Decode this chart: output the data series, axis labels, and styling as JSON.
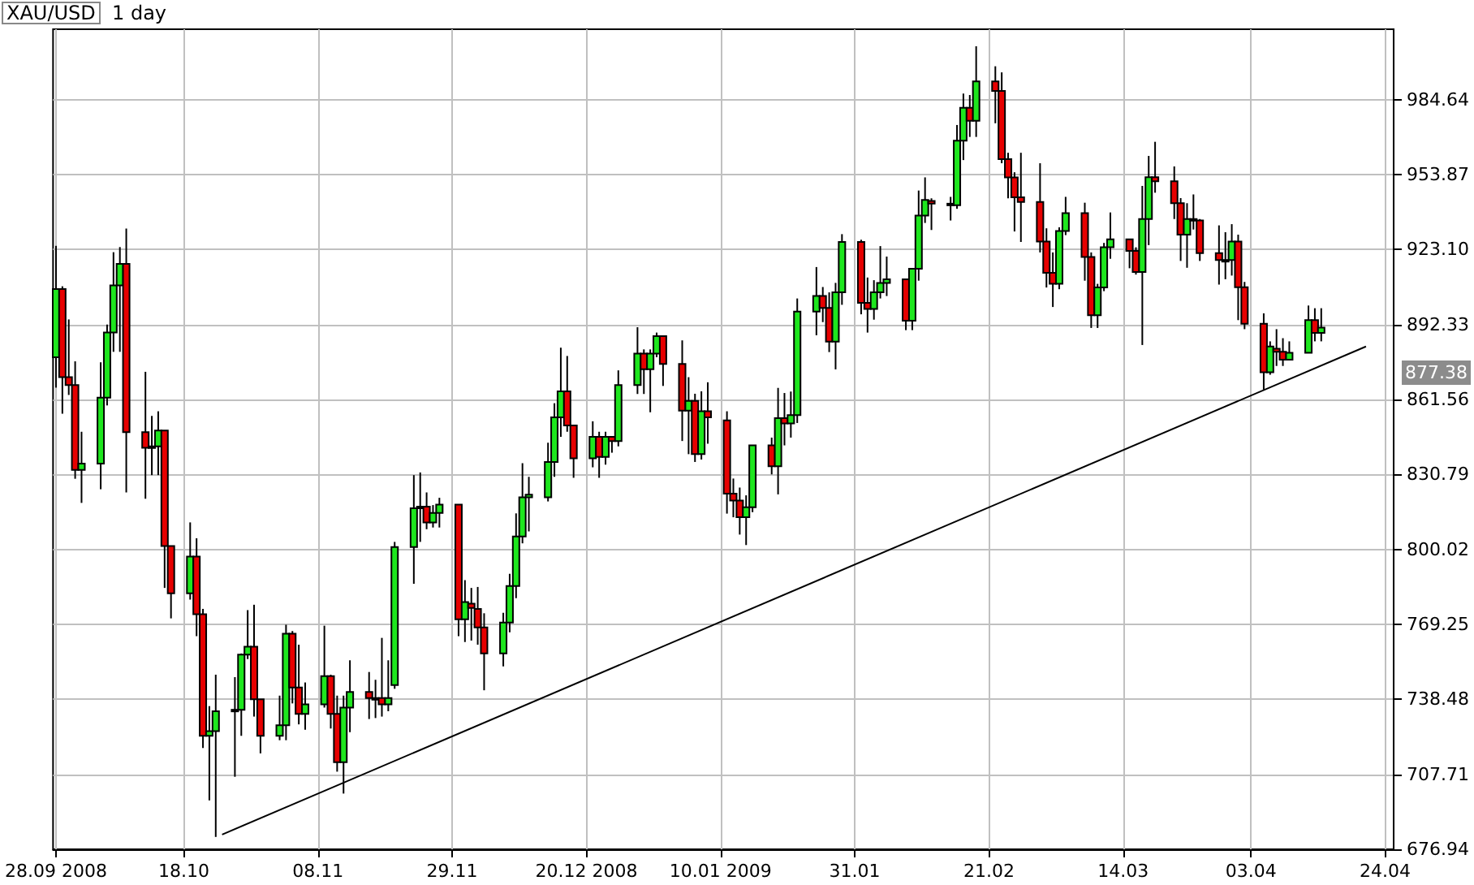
{
  "chart_data": {
    "type": "candlestick",
    "title": "XAU/USD",
    "subtitle": "1 day",
    "x": [
      "2008-09-28",
      "2008-09-29",
      "2008-09-30",
      "2008-10-01",
      "2008-10-02",
      "2008-10-05",
      "2008-10-06",
      "2008-10-07",
      "2008-10-08",
      "2008-10-09",
      "2008-10-12",
      "2008-10-13",
      "2008-10-14",
      "2008-10-15",
      "2008-10-16",
      "2008-10-19",
      "2008-10-20",
      "2008-10-21",
      "2008-10-22",
      "2008-10-23",
      "2008-10-26",
      "2008-10-27",
      "2008-10-28",
      "2008-10-29",
      "2008-10-30",
      "2008-11-02",
      "2008-11-03",
      "2008-11-04",
      "2008-11-05",
      "2008-11-06",
      "2008-11-09",
      "2008-11-10",
      "2008-11-11",
      "2008-11-12",
      "2008-11-13",
      "2008-11-16",
      "2008-11-17",
      "2008-11-18",
      "2008-11-19",
      "2008-11-20",
      "2008-11-23",
      "2008-11-24",
      "2008-11-25",
      "2008-11-26",
      "2008-11-27",
      "2008-11-30",
      "2008-12-01",
      "2008-12-02",
      "2008-12-03",
      "2008-12-04",
      "2008-12-07",
      "2008-12-08",
      "2008-12-09",
      "2008-12-10",
      "2008-12-11",
      "2008-12-14",
      "2008-12-15",
      "2008-12-16",
      "2008-12-17",
      "2008-12-18",
      "2008-12-21",
      "2008-12-22",
      "2008-12-23",
      "2008-12-24",
      "2008-12-25",
      "2008-12-28",
      "2008-12-29",
      "2008-12-30",
      "2008-12-31",
      "2009-01-01",
      "2009-01-04",
      "2009-01-05",
      "2009-01-06",
      "2009-01-07",
      "2009-01-08",
      "2009-01-11",
      "2009-01-12",
      "2009-01-13",
      "2009-01-14",
      "2009-01-15",
      "2009-01-18",
      "2009-01-19",
      "2009-01-20",
      "2009-01-21",
      "2009-01-22",
      "2009-01-25",
      "2009-01-26",
      "2009-01-27",
      "2009-01-28",
      "2009-01-29",
      "2009-02-01",
      "2009-02-02",
      "2009-02-03",
      "2009-02-04",
      "2009-02-05",
      "2009-02-08",
      "2009-02-09",
      "2009-02-10",
      "2009-02-11",
      "2009-02-12",
      "2009-02-15",
      "2009-02-16",
      "2009-02-17",
      "2009-02-18",
      "2009-02-19",
      "2009-02-22",
      "2009-02-23",
      "2009-02-24",
      "2009-02-25",
      "2009-02-26",
      "2009-03-01",
      "2009-03-02",
      "2009-03-03",
      "2009-03-04",
      "2009-03-05",
      "2009-03-08",
      "2009-03-09",
      "2009-03-10",
      "2009-03-11",
      "2009-03-12",
      "2009-03-15",
      "2009-03-16",
      "2009-03-17",
      "2009-03-18",
      "2009-03-19",
      "2009-03-22",
      "2009-03-23",
      "2009-03-24",
      "2009-03-25",
      "2009-03-26",
      "2009-03-29",
      "2009-03-30",
      "2009-03-31",
      "2009-04-01",
      "2009-04-02",
      "2009-04-05",
      "2009-04-06",
      "2009-04-07",
      "2009-04-08",
      "2009-04-09",
      "2009-04-12",
      "2009-04-13",
      "2009-04-14"
    ],
    "ohlc": [
      [
        878.9,
        924.6,
        866.4,
        906.9
      ],
      [
        906.9,
        908.0,
        855.7,
        870.7
      ],
      [
        870.7,
        894.4,
        863.4,
        867.5
      ],
      [
        867.5,
        877.2,
        829.0,
        832.6
      ],
      [
        832.6,
        848.3,
        819.1,
        835.2
      ],
      [
        835.2,
        876.8,
        824.7,
        862.3
      ],
      [
        862.3,
        892.3,
        859.1,
        889.0
      ],
      [
        889.0,
        922.0,
        881.1,
        908.4
      ],
      [
        908.4,
        924.1,
        881.1,
        917.2
      ],
      [
        917.2,
        931.7,
        823.4,
        848.1
      ],
      [
        848.1,
        872.9,
        820.8,
        841.7
      ],
      [
        841.7,
        854.8,
        830.5,
        842.3
      ],
      [
        842.3,
        856.7,
        830.5,
        848.8
      ],
      [
        848.8,
        848.8,
        784.2,
        801.4
      ],
      [
        801.4,
        801.4,
        771.7,
        782.0
      ],
      [
        782.0,
        811.1,
        779.4,
        797.1
      ],
      [
        797.1,
        804.6,
        764.4,
        773.4
      ],
      [
        773.4,
        775.6,
        718.5,
        723.5
      ],
      [
        723.5,
        735.7,
        697.0,
        725.4
      ],
      [
        725.4,
        748.6,
        682.0,
        733.6
      ],
      [
        733.6,
        747.6,
        706.7,
        734.2
      ],
      [
        734.2,
        757.3,
        723.5,
        756.8
      ],
      [
        756.8,
        775.1,
        755.0,
        760.1
      ],
      [
        760.1,
        777.3,
        731.4,
        738.5
      ],
      [
        738.5,
        738.5,
        716.3,
        723.5
      ],
      [
        723.5,
        740.0,
        721.7,
        727.8
      ],
      [
        727.8,
        769.1,
        721.7,
        765.4
      ],
      [
        765.4,
        766.5,
        736.8,
        743.3
      ],
      [
        743.3,
        760.9,
        728.2,
        732.5
      ],
      [
        732.5,
        745.4,
        726.0,
        736.4
      ],
      [
        736.4,
        768.7,
        735.1,
        748.0
      ],
      [
        748.0,
        748.6,
        726.5,
        732.5
      ],
      [
        732.5,
        740.0,
        708.8,
        712.7
      ],
      [
        712.7,
        740.0,
        699.8,
        735.1
      ],
      [
        735.1,
        754.5,
        725.0,
        741.5
      ],
      [
        741.5,
        749.7,
        730.4,
        739.0
      ],
      [
        739.0,
        746.5,
        730.8,
        738.3
      ],
      [
        739.0,
        763.7,
        731.4,
        736.4
      ],
      [
        736.4,
        754.5,
        733.6,
        739.0
      ],
      [
        744.3,
        803.1,
        742.8,
        801.0
      ],
      [
        801.0,
        830.5,
        785.9,
        816.9
      ],
      [
        816.9,
        831.6,
        803.1,
        817.6
      ],
      [
        817.6,
        823.4,
        808.3,
        811.1
      ],
      [
        811.1,
        818.2,
        809.0,
        815.0
      ],
      [
        815.0,
        821.2,
        809.0,
        818.4
      ],
      [
        818.4,
        818.4,
        764.4,
        771.3
      ],
      [
        771.3,
        787.4,
        762.0,
        778.4
      ],
      [
        777.7,
        784.2,
        762.6,
        776.0
      ],
      [
        775.6,
        784.6,
        760.9,
        768.0
      ],
      [
        768.0,
        773.8,
        742.2,
        757.3
      ],
      [
        757.3,
        774.0,
        752.0,
        770.0
      ],
      [
        770.0,
        790.0,
        766.0,
        785.0
      ],
      [
        785.0,
        814.8,
        780.0,
        805.3
      ],
      [
        805.3,
        835.4,
        802.5,
        821.4
      ],
      [
        821.4,
        829.8,
        807.4,
        822.5
      ],
      [
        821.4,
        843.8,
        819.7,
        835.9
      ],
      [
        835.9,
        860.0,
        829.8,
        854.2
      ],
      [
        854.2,
        882.8,
        846.2,
        864.9
      ],
      [
        864.9,
        879.4,
        848.3,
        850.9
      ],
      [
        850.9,
        850.9,
        829.4,
        837.4
      ],
      [
        837.4,
        852.6,
        833.7,
        846.2
      ],
      [
        846.2,
        848.3,
        829.4,
        838.0
      ],
      [
        838.0,
        848.3,
        834.8,
        846.2
      ],
      [
        846.2,
        846.2,
        839.7,
        844.5
      ],
      [
        844.5,
        873.5,
        842.3,
        867.5
      ],
      [
        867.5,
        891.2,
        863.8,
        880.4
      ],
      [
        880.4,
        882.1,
        863.8,
        874.0
      ],
      [
        874.0,
        882.1,
        856.3,
        880.4
      ],
      [
        880.4,
        889.0,
        878.9,
        887.5
      ],
      [
        887.5,
        887.5,
        867.1,
        876.1
      ],
      [
        876.1,
        885.8,
        844.5,
        857.0
      ],
      [
        857.0,
        870.7,
        839.1,
        861.0
      ],
      [
        861.0,
        863.9,
        835.9,
        839.1
      ],
      [
        839.1,
        864.9,
        836.9,
        856.7
      ],
      [
        856.7,
        868.6,
        843.4,
        854.2
      ],
      [
        853.0,
        856.7,
        814.7,
        822.9
      ],
      [
        822.9,
        829.1,
        813.2,
        820.1
      ],
      [
        820.1,
        825.4,
        806.1,
        813.2
      ],
      [
        813.2,
        822.2,
        801.8,
        817.3
      ],
      [
        817.3,
        842.7,
        815.3,
        842.7
      ],
      [
        842.7,
        845.9,
        830.8,
        834.1
      ],
      [
        834.1,
        866.3,
        822.6,
        853.9
      ],
      [
        853.9,
        864.2,
        842.7,
        851.7
      ],
      [
        851.7,
        864.8,
        845.9,
        855.1
      ],
      [
        855.1,
        903.0,
        851.9,
        897.6
      ],
      [
        897.6,
        915.9,
        887.9,
        904.0
      ],
      [
        904.0,
        907.7,
        893.3,
        899.1
      ],
      [
        899.1,
        905.5,
        881.0,
        885.3
      ],
      [
        885.3,
        909.4,
        873.9,
        905.5
      ],
      [
        905.5,
        929.4,
        900.4,
        926.2
      ],
      [
        926.2,
        927.1,
        896.5,
        901.2
      ],
      [
        901.2,
        911.6,
        889.0,
        898.7
      ],
      [
        898.7,
        910.5,
        894.3,
        905.5
      ],
      [
        905.5,
        924.5,
        903.0,
        909.4
      ],
      [
        909.4,
        920.2,
        904.0,
        910.9
      ],
      [
        910.9,
        910.9,
        890.0,
        893.9
      ],
      [
        893.9,
        915.2,
        890.0,
        915.2
      ],
      [
        915.2,
        947.3,
        910.3,
        937.0
      ],
      [
        937.0,
        952.7,
        934.0,
        943.4
      ],
      [
        943.0,
        944.1,
        931.1,
        941.9
      ],
      [
        941.9,
        944.7,
        935.0,
        941.3
      ],
      [
        941.3,
        974.2,
        939.8,
        967.8
      ],
      [
        967.8,
        987.1,
        959.8,
        981.3
      ],
      [
        981.3,
        986.5,
        969.3,
        975.9
      ],
      [
        975.9,
        1006.5,
        969.3,
        992.1
      ],
      [
        992.1,
        998.3,
        974.9,
        988.2
      ],
      [
        988.2,
        995.8,
        958.5,
        960.2
      ],
      [
        960.2,
        962.8,
        944.1,
        952.7
      ],
      [
        952.7,
        954.8,
        930.5,
        944.5
      ],
      [
        944.5,
        962.8,
        926.2,
        942.6
      ],
      [
        942.6,
        958.5,
        921.9,
        926.4
      ],
      [
        926.4,
        931.8,
        907.5,
        913.5
      ],
      [
        913.5,
        921.9,
        899.5,
        909.0
      ],
      [
        909.0,
        932.2,
        906.8,
        930.7
      ],
      [
        930.7,
        944.7,
        929.0,
        938.0
      ],
      [
        938.0,
        942.3,
        910.3,
        920.0
      ],
      [
        920.0,
        921.9,
        890.9,
        896.1
      ],
      [
        896.1,
        909.0,
        890.9,
        907.5
      ],
      [
        907.5,
        925.8,
        906.0,
        924.0
      ],
      [
        924.0,
        938.3,
        919.3,
        927.3
      ],
      [
        927.3,
        927.3,
        915.4,
        922.5
      ],
      [
        922.5,
        924.0,
        912.8,
        913.9
      ],
      [
        913.9,
        949.2,
        883.9,
        935.6
      ],
      [
        935.6,
        961.5,
        924.9,
        952.8
      ],
      [
        952.8,
        967.3,
        946.4,
        951.1
      ],
      [
        951.1,
        957.2,
        935.6,
        942.1
      ],
      [
        942.1,
        944.2,
        918.4,
        929.2
      ],
      [
        929.2,
        942.1,
        915.6,
        935.6
      ],
      [
        935.6,
        945.7,
        931.3,
        935.0
      ],
      [
        935.0,
        935.6,
        918.4,
        921.6
      ],
      [
        921.6,
        933.0,
        908.7,
        918.8
      ],
      [
        918.8,
        930.2,
        910.9,
        918.4
      ],
      [
        918.8,
        933.5,
        912.4,
        926.4
      ],
      [
        926.4,
        929.2,
        894.1,
        907.6
      ],
      [
        907.6,
        909.8,
        890.4,
        892.6
      ],
      [
        892.6,
        896.9,
        865.6,
        872.7
      ],
      [
        872.7,
        885.4,
        871.7,
        883.3
      ],
      [
        882.4,
        890.4,
        875.3,
        881.1
      ],
      [
        881.1,
        886.7,
        875.3,
        877.9
      ],
      [
        877.9,
        885.4,
        877.9,
        880.7
      ],
      [
        880.7,
        900.1,
        880.7,
        894.1
      ],
      [
        894.1,
        899.0,
        885.4,
        888.9
      ],
      [
        888.9,
        899.0,
        885.4,
        891.0
      ]
    ],
    "colors": [
      "#1ee61e",
      "#e60000",
      "#e60000",
      "#e60000",
      "#1ee61e",
      "#1ee61e",
      "#1ee61e",
      "#1ee61e",
      "#1ee61e",
      "#e60000",
      "#e60000",
      "#1ee61e",
      "#1ee61e",
      "#e60000",
      "#e60000",
      "#1ee61e",
      "#e60000",
      "#e60000",
      "#1ee61e",
      "#1ee61e",
      "#1ee61e",
      "#1ee61e",
      "#1ee61e",
      "#e60000",
      "#e60000",
      "#1ee61e",
      "#1ee61e",
      "#e60000",
      "#e60000",
      "#1ee61e",
      "#1ee61e",
      "#e60000",
      "#e60000",
      "#1ee61e",
      "#1ee61e",
      "#e60000",
      "#e60000",
      "#e60000",
      "#1ee61e",
      "#1ee61e",
      "#1ee61e",
      "#1ee61e",
      "#e60000",
      "#1ee61e",
      "#1ee61e",
      "#e60000",
      "#1ee61e",
      "#e60000",
      "#e60000",
      "#e60000",
      "#1ee61e",
      "#1ee61e",
      "#1ee61e",
      "#1ee61e",
      "#1ee61e",
      "#1ee61e",
      "#1ee61e",
      "#1ee61e",
      "#e60000",
      "#e60000",
      "#1ee61e",
      "#e60000",
      "#1ee61e",
      "#e60000",
      "#1ee61e",
      "#1ee61e",
      "#e60000",
      "#1ee61e",
      "#1ee61e",
      "#e60000",
      "#e60000",
      "#1ee61e",
      "#e60000",
      "#1ee61e",
      "#e60000",
      "#e60000",
      "#e60000",
      "#e60000",
      "#1ee61e",
      "#1ee61e",
      "#e60000",
      "#1ee61e",
      "#e60000",
      "#1ee61e",
      "#1ee61e",
      "#1ee61e",
      "#e60000",
      "#e60000",
      "#1ee61e",
      "#1ee61e",
      "#e60000",
      "#e60000",
      "#1ee61e",
      "#1ee61e",
      "#1ee61e",
      "#e60000",
      "#1ee61e",
      "#1ee61e",
      "#1ee61e",
      "#e60000",
      "#e60000",
      "#1ee61e",
      "#1ee61e",
      "#e60000",
      "#1ee61e",
      "#e60000",
      "#e60000",
      "#e60000",
      "#e60000",
      "#e60000",
      "#e60000",
      "#e60000",
      "#e60000",
      "#1ee61e",
      "#1ee61e",
      "#e60000",
      "#e60000",
      "#1ee61e",
      "#1ee61e",
      "#1ee61e",
      "#e60000",
      "#e60000",
      "#1ee61e",
      "#1ee61e",
      "#e60000",
      "#e60000",
      "#e60000",
      "#1ee61e",
      "#e60000",
      "#e60000",
      "#e60000",
      "#e60000",
      "#1ee61e",
      "#e60000",
      "#e60000",
      "#e60000",
      "#1ee61e",
      "#e60000",
      "#e60000",
      "#1ee61e",
      "#1ee61e",
      "#e60000",
      "#1ee61e"
    ],
    "series": [
      {
        "type": "line",
        "x": [
          "2008-10-24",
          "2009-04-21"
        ],
        "values": [
          683.0,
          883.3
        ],
        "color": "#000000",
        "marker": "none",
        "line_style": "solid"
      }
    ],
    "xlim": [
      "2008-09-27T13:00",
      "2009-04-25T08:00"
    ],
    "xticks": [
      {
        "value": "2008-09-28",
        "label": "28.09 2008"
      },
      {
        "value": "2008-10-18",
        "label": "18.10"
      },
      {
        "value": "2008-11-08",
        "label": "08.11"
      },
      {
        "value": "2008-11-29",
        "label": "29.11"
      },
      {
        "value": "2008-12-20",
        "label": "20.12 2008"
      },
      {
        "value": "2009-01-10",
        "label": "10.01 2009"
      },
      {
        "value": "2009-01-31",
        "label": "31.01"
      },
      {
        "value": "2009-02-21",
        "label": "21.02"
      },
      {
        "value": "2009-03-14",
        "label": "14.03"
      },
      {
        "value": "2009-04-03",
        "label": "03.04"
      },
      {
        "value": "2009-04-24",
        "label": "24.04"
      }
    ],
    "ylim": [
      676.94,
      1013.5
    ],
    "yticks": [
      676.94,
      707.71,
      738.48,
      769.25,
      800.02,
      830.79,
      861.56,
      892.33,
      {
        "value": 923.1,
        "label": "923.10"
      },
      953.87,
      984.64
    ],
    "grid": true,
    "annotations": [
      "877.38"
    ]
  }
}
